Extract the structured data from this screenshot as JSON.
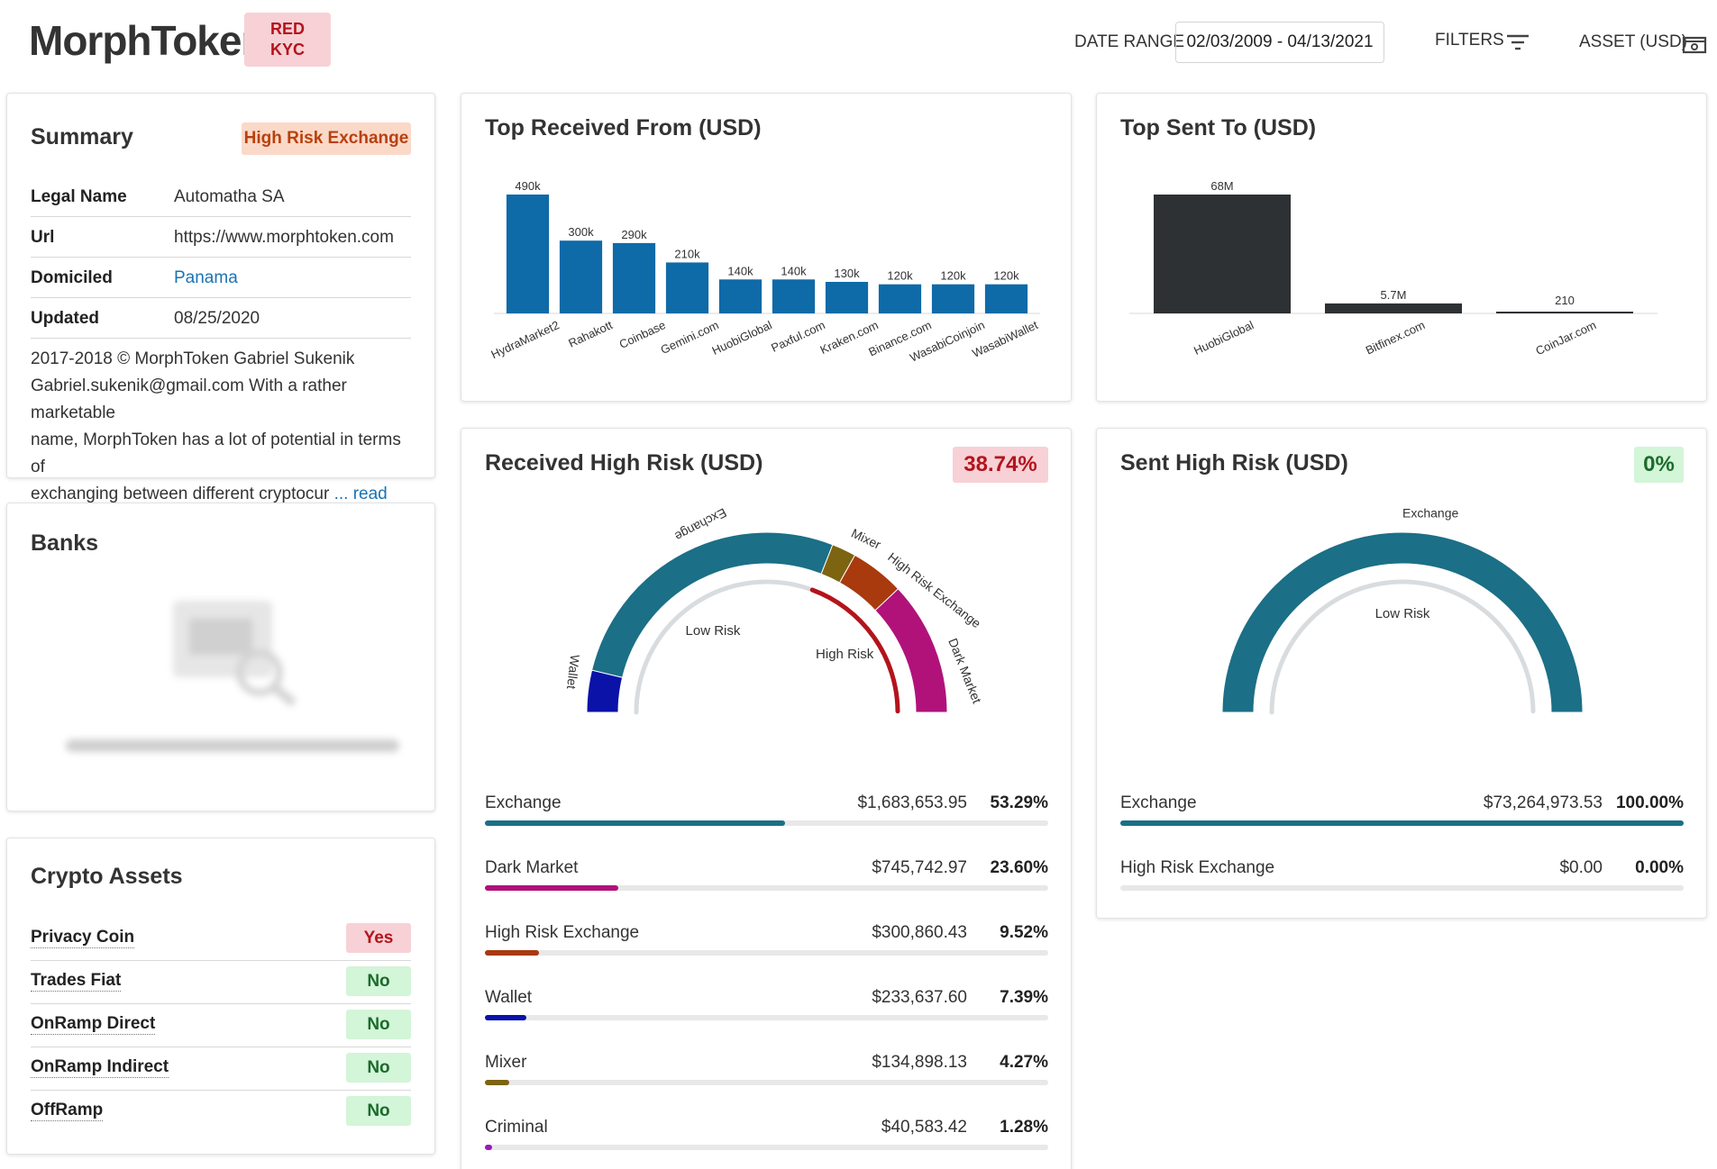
{
  "header": {
    "brand": "MorphToken",
    "kyc_line1": "RED",
    "kyc_line2": "KYC",
    "date_range_label": "DATE RANGE",
    "date_range_value": "02/03/2009 - 04/13/2021",
    "filters_label": "FILTERS",
    "asset_label": "ASSET (USD)",
    "icons": [
      "filter-icon",
      "cash-icon"
    ]
  },
  "summary": {
    "title": "Summary",
    "badge": "High Risk Exchange",
    "rows": [
      {
        "key": "Legal Name",
        "value": "Automatha SA"
      },
      {
        "key": "Url",
        "value": "https://www.morphtoken.com"
      },
      {
        "key": "Domiciled",
        "value": "Panama"
      },
      {
        "key": "Updated",
        "value": "08/25/2020"
      }
    ],
    "description_l1": "2017-2018 © MorphToken Gabriel Sukenik",
    "description_l2": "Gabriel.sukenik@gmail.com With a rather marketable",
    "description_l3": "name, MorphToken has a lot of potential in terms of",
    "description_l4": "exchanging between different cryptocur",
    "read_more": "... read more"
  },
  "banks": {
    "title": "Banks"
  },
  "crypto_assets": {
    "title": "Crypto Assets",
    "rows": [
      {
        "key": "Privacy Coin",
        "value": "Yes"
      },
      {
        "key": "Trades Fiat",
        "value": "No"
      },
      {
        "key": "OnRamp Direct",
        "value": "No"
      },
      {
        "key": "OnRamp Indirect",
        "value": "No"
      },
      {
        "key": "OffRamp",
        "value": "No"
      }
    ]
  },
  "top_received": {
    "title": "Top Received From (USD)"
  },
  "top_sent": {
    "title": "Top Sent To (USD)"
  },
  "received_high_risk": {
    "title": "Received High Risk (USD)",
    "percent": "38.74%",
    "gauge_inner_labels": [
      "Low Risk",
      "High Risk"
    ],
    "rows": [
      {
        "label": "Exchange",
        "amount": "$1,683,653.95",
        "percent": "53.29%",
        "fraction": 0.5329,
        "color": "#1b6f86"
      },
      {
        "label": "Dark Market",
        "amount": "$745,742.97",
        "percent": "23.60%",
        "fraction": 0.236,
        "color": "#b0127a"
      },
      {
        "label": "High Risk Exchange",
        "amount": "$300,860.43",
        "percent": "9.52%",
        "fraction": 0.0952,
        "color": "#a83a0e"
      },
      {
        "label": "Wallet",
        "amount": "$233,637.60",
        "percent": "7.39%",
        "fraction": 0.0739,
        "color": "#0a12a8"
      },
      {
        "label": "Mixer",
        "amount": "$134,898.13",
        "percent": "4.27%",
        "fraction": 0.0427,
        "color": "#7d6410"
      },
      {
        "label": "Criminal",
        "amount": "$40,583.42",
        "percent": "1.28%",
        "fraction": 0.0128,
        "color": "#9d17b8"
      }
    ]
  },
  "sent_high_risk": {
    "title": "Sent High Risk (USD)",
    "percent": "0%",
    "gauge_inner_labels": [
      "Low Risk"
    ],
    "rows": [
      {
        "label": "Exchange",
        "amount": "$73,264,973.53",
        "percent": "100.00%",
        "fraction": 1.0,
        "color": "#1b6f86"
      },
      {
        "label": "High Risk Exchange",
        "amount": "$0.00",
        "percent": "0.00%",
        "fraction": 0.0,
        "color": "#a83a0e"
      }
    ]
  },
  "chart_data": [
    {
      "type": "bar",
      "title": "Top Received From (USD)",
      "categories": [
        "HydraMarket2",
        "Rahakott",
        "Coinbase",
        "Gemini.com",
        "HuobiGlobal",
        "Paxful.com",
        "Kraken.com",
        "Binance.com",
        "WasabiCoinjoin",
        "WasabiWallet"
      ],
      "values": [
        490000,
        300000,
        290000,
        210000,
        140000,
        140000,
        130000,
        120000,
        120000,
        120000
      ],
      "data_labels": [
        "490k",
        "300k",
        "290k",
        "210k",
        "140k",
        "140k",
        "130k",
        "120k",
        "120k",
        "120k"
      ],
      "color": "#0f6aa8",
      "grid": false
    },
    {
      "type": "bar",
      "title": "Top Sent To (USD)",
      "categories": [
        "HuobiGlobal",
        "Bitfinex.com",
        "CoinJar.com"
      ],
      "values": [
        68000000,
        5700000,
        210
      ],
      "data_labels": [
        "68M",
        "5.7M",
        "210"
      ],
      "color": "#2e3134",
      "grid": false
    },
    {
      "type": "pie",
      "title": "Received High Risk (USD)",
      "categories": [
        "Wallet",
        "Exchange",
        "Mixer",
        "High Risk Exchange",
        "Dark Market"
      ],
      "values": [
        233637.6,
        1683653.95,
        134898.13,
        300860.43,
        745742.97
      ],
      "colors": [
        "#0a12a8",
        "#1b6f86",
        "#7d6410",
        "#a83a0e",
        "#b0127a"
      ],
      "inner": {
        "categories": [
          "Low Risk",
          "High Risk"
        ],
        "values": [
          61.26,
          38.74
        ]
      }
    },
    {
      "type": "pie",
      "title": "Sent High Risk (USD)",
      "categories": [
        "Exchange"
      ],
      "values": [
        73264973.53
      ],
      "colors": [
        "#1b6f86"
      ],
      "inner": {
        "categories": [
          "Low Risk"
        ],
        "values": [
          100
        ]
      }
    }
  ]
}
